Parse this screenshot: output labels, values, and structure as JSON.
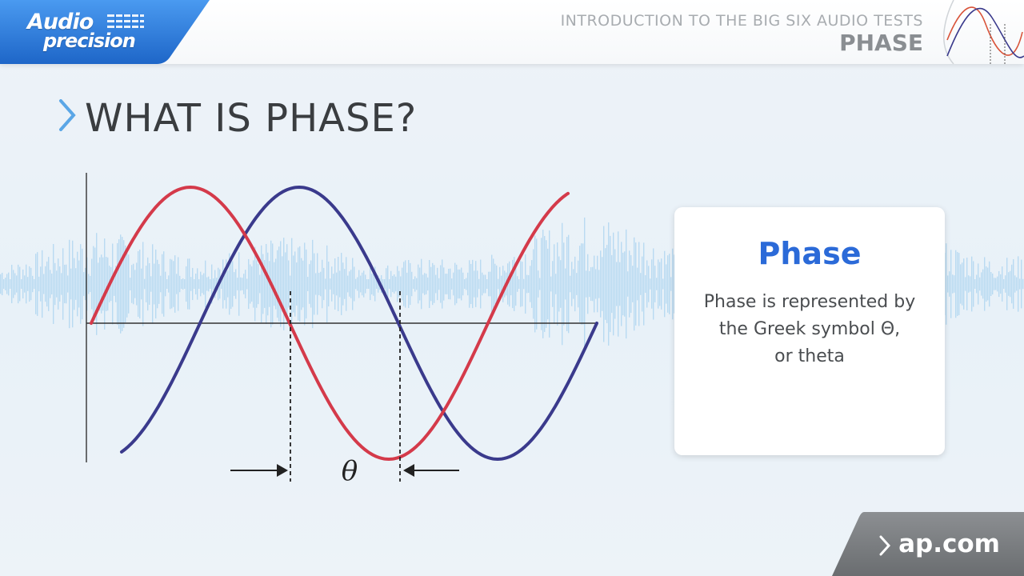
{
  "header": {
    "logo_line1": "Audio",
    "logo_line2": "precision",
    "subtitle": "INTRODUCTION TO THE BIG SIX AUDIO TESTS",
    "title": "PHASE"
  },
  "slide": {
    "title": "WHAT IS PHASE?"
  },
  "diagram": {
    "theta_label": "θ",
    "wave_colors": {
      "red": "#d43a4a",
      "blue": "#3a3a8c"
    }
  },
  "card": {
    "title": "Phase",
    "body_lines": [
      "Phase is represented by",
      "the Greek symbol Θ,",
      "or theta"
    ]
  },
  "footer": {
    "link": "ap.com"
  },
  "colors": {
    "brand_blue": "#2f7fe0",
    "accent_blue": "#2b6ad8",
    "footer_gray": "#7c7f82",
    "bg_wave": "#a8d2ef"
  }
}
